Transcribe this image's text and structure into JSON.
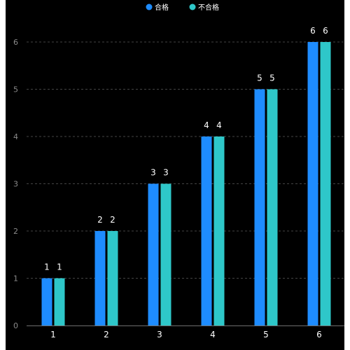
{
  "chart_data": {
    "type": "bar",
    "categories": [
      "1",
      "2",
      "3",
      "4",
      "5",
      "6"
    ],
    "series": [
      {
        "name": "合格",
        "values": [
          1,
          2,
          3,
          4,
          5,
          6
        ],
        "color": "#1e8cff"
      },
      {
        "name": "不合格",
        "values": [
          1,
          2,
          3,
          4,
          5,
          6
        ],
        "color": "#2ec7c9"
      }
    ],
    "y_ticks": [
      "0",
      "1",
      "2",
      "3",
      "4",
      "5",
      "6"
    ],
    "ylim": [
      0,
      6
    ],
    "grid": true,
    "legend_position": "top-center",
    "data_labels": true,
    "background": "#000000"
  }
}
